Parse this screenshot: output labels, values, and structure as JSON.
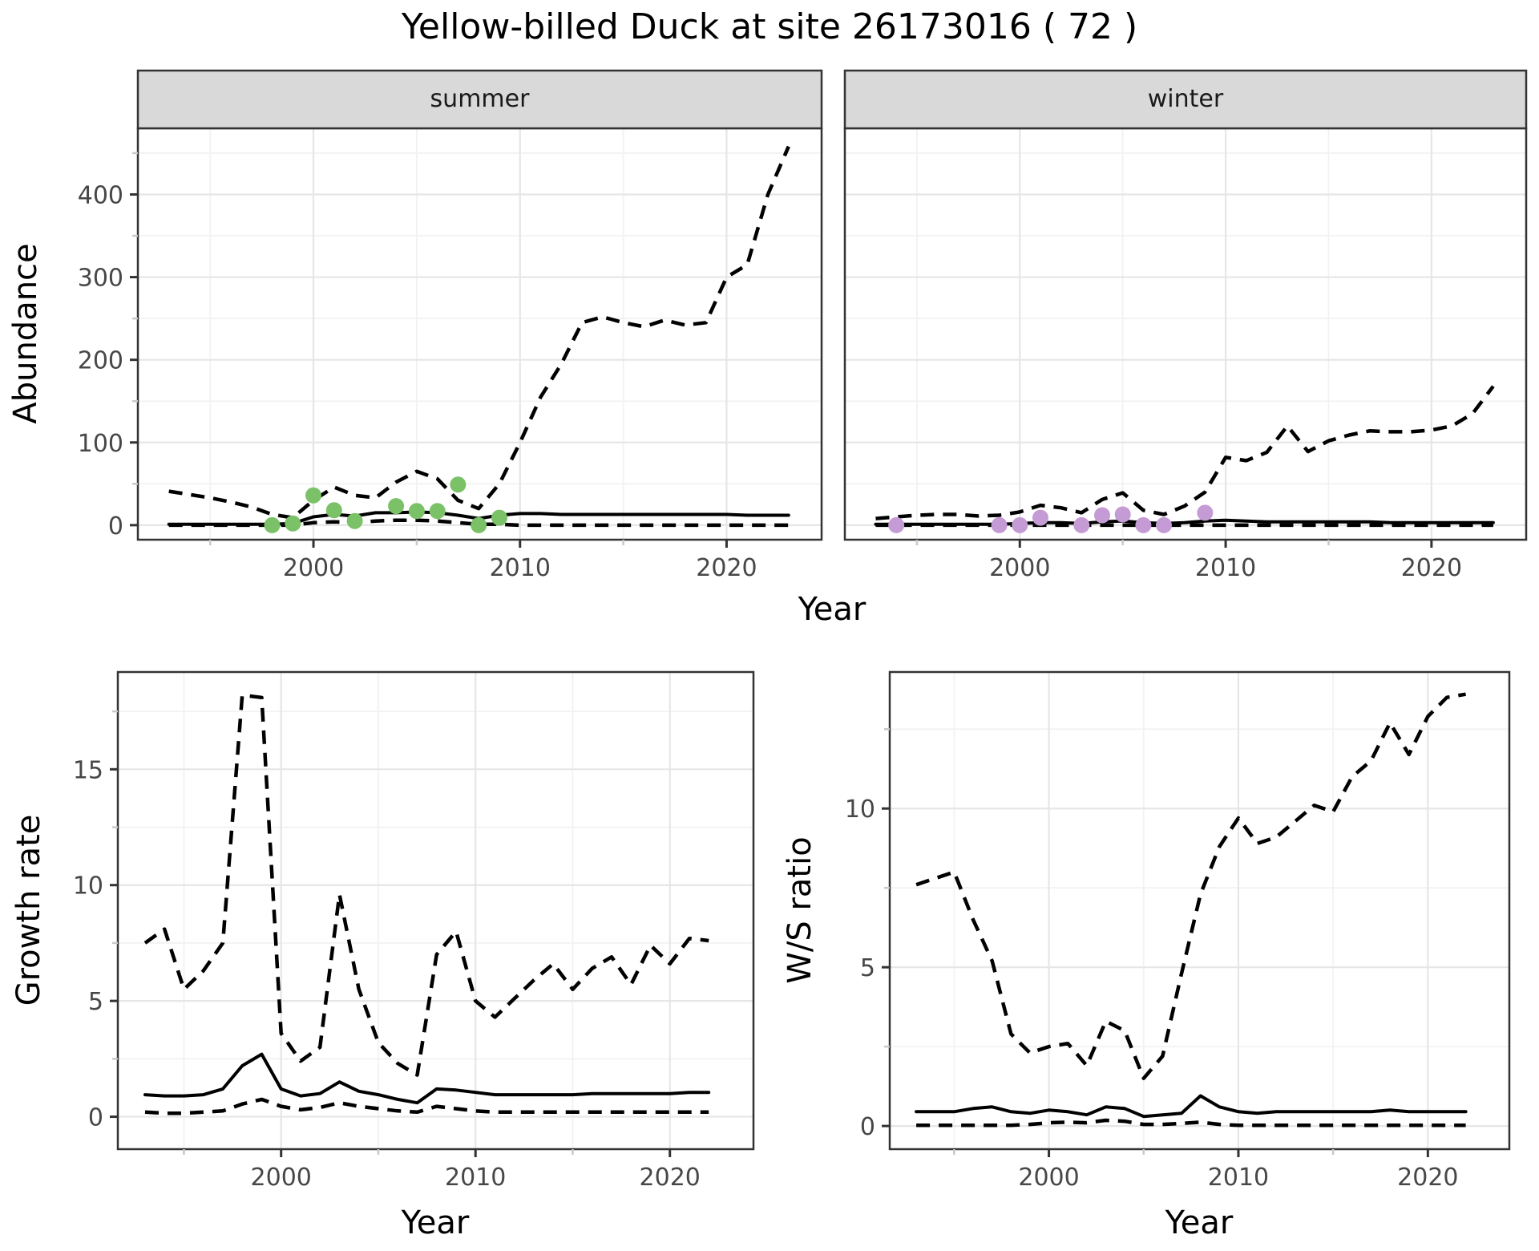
{
  "title": "Yellow-billed Duck at site 26173016 ( 72 )",
  "colors": {
    "summer_point": "#7AC167",
    "winter_point": "#C59BD5",
    "line": "#000000",
    "strip_bg": "#D9D9D9",
    "panel_border": "#333333",
    "grid_major": "#E6E6E6",
    "grid_minor": "#F2F2F2",
    "tick_label": "#474747",
    "tick_major": "#333333",
    "tick_minor": "#C8C8C8"
  },
  "chart_data": [
    {
      "type": "line",
      "facet": "summer",
      "strip_label": "summer",
      "xlabel": "Year",
      "ylabel": "Abundance",
      "xlim": [
        1991.5,
        2024.6
      ],
      "ylim": [
        -17.6,
        480
      ],
      "x_ticks": [
        2000,
        2010,
        2020
      ],
      "x_tick_labels": [
        "2000",
        "2010",
        "2020"
      ],
      "x_minor": [
        1995,
        2005,
        2015
      ],
      "y_ticks": [
        0,
        100,
        200,
        300,
        400
      ],
      "y_tick_labels": [
        "0",
        "100",
        "200",
        "300",
        "400"
      ],
      "y_minor": [
        50,
        150,
        250,
        350,
        450
      ],
      "x": [
        1993,
        1994,
        1995,
        1996,
        1997,
        1998,
        1999,
        2000,
        2001,
        2002,
        2003,
        2004,
        2005,
        2006,
        2007,
        2008,
        2009,
        2010,
        2011,
        2012,
        2013,
        2014,
        2015,
        2016,
        2017,
        2018,
        2019,
        2020,
        2021,
        2022,
        2023
      ],
      "series": [
        {
          "name": "upper-ci",
          "style": "dashed",
          "values": [
            41,
            37,
            33,
            28,
            22,
            13,
            9,
            30,
            46,
            36,
            33,
            52,
            65,
            56,
            30,
            20,
            50,
            100,
            155,
            195,
            245,
            252,
            245,
            240,
            248,
            242,
            245,
            300,
            315,
            400,
            458
          ]
        },
        {
          "name": "median",
          "style": "solid",
          "values": [
            1,
            1,
            1,
            1,
            1,
            1,
            2,
            10,
            13,
            11,
            15,
            15,
            16,
            15,
            12,
            8,
            12,
            14,
            14,
            13,
            13,
            13,
            13,
            13,
            13,
            13,
            13,
            13,
            12,
            12,
            12
          ]
        },
        {
          "name": "lower-ci",
          "style": "dashed",
          "values": [
            0,
            0,
            0,
            0,
            0,
            0,
            0,
            3,
            4,
            3,
            5,
            6,
            6,
            5,
            3,
            1,
            1,
            0,
            0,
            0,
            0,
            0,
            0,
            0,
            0,
            0,
            0,
            0,
            0,
            0,
            0
          ]
        }
      ],
      "points": {
        "name": "summer-observed",
        "color": "#7AC167",
        "data": [
          [
            1998,
            0
          ],
          [
            1999,
            2
          ],
          [
            2000,
            36
          ],
          [
            2001,
            18
          ],
          [
            2002,
            5
          ],
          [
            2004,
            23
          ],
          [
            2005,
            17
          ],
          [
            2006,
            17
          ],
          [
            2007,
            49
          ],
          [
            2008,
            0
          ],
          [
            2009,
            9
          ]
        ]
      }
    },
    {
      "type": "line",
      "facet": "winter",
      "strip_label": "winter",
      "xlabel": "Year",
      "ylabel": "Abundance",
      "xlim": [
        1991.5,
        2024.6
      ],
      "ylim": [
        -17.6,
        480
      ],
      "x_ticks": [
        2000,
        2010,
        2020
      ],
      "x_tick_labels": [
        "2000",
        "2010",
        "2020"
      ],
      "x_minor": [
        1995,
        2005,
        2015
      ],
      "y_ticks": [
        0,
        100,
        200,
        300,
        400
      ],
      "y_tick_labels": [
        "0",
        "100",
        "200",
        "300",
        "400"
      ],
      "y_minor": [
        50,
        150,
        250,
        350,
        450
      ],
      "x": [
        1993,
        1994,
        1995,
        1996,
        1997,
        1998,
        1999,
        2000,
        2001,
        2002,
        2003,
        2004,
        2005,
        2006,
        2007,
        2008,
        2009,
        2010,
        2011,
        2012,
        2013,
        2014,
        2015,
        2016,
        2017,
        2018,
        2019,
        2020,
        2021,
        2022,
        2023
      ],
      "series": [
        {
          "name": "upper-ci",
          "style": "dashed",
          "values": [
            8,
            10,
            12,
            13,
            13,
            11,
            12,
            16,
            24,
            21,
            15,
            31,
            39,
            18,
            13,
            23,
            40,
            82,
            78,
            88,
            120,
            89,
            102,
            109,
            114,
            113,
            113,
            115,
            120,
            135,
            168
          ]
        },
        {
          "name": "median",
          "style": "solid",
          "values": [
            1,
            1,
            1,
            1,
            1,
            1,
            1,
            2,
            3,
            3,
            2,
            4,
            5,
            3,
            2,
            3,
            5,
            6,
            5,
            4,
            4,
            4,
            4,
            4,
            4,
            3,
            3,
            3,
            3,
            3,
            3
          ]
        },
        {
          "name": "lower-ci",
          "style": "dashed",
          "values": [
            0,
            0,
            0,
            0,
            0,
            0,
            0,
            0,
            0,
            0,
            0,
            0,
            0,
            0,
            0,
            0,
            0,
            0,
            0,
            0,
            0,
            0,
            0,
            0,
            0,
            0,
            0,
            0,
            0,
            0,
            0
          ]
        }
      ],
      "points": {
        "name": "winter-observed",
        "color": "#C59BD5",
        "data": [
          [
            1994,
            0
          ],
          [
            1999,
            0
          ],
          [
            2000,
            0
          ],
          [
            2001,
            9
          ],
          [
            2003,
            0
          ],
          [
            2004,
            12
          ],
          [
            2005,
            13
          ],
          [
            2006,
            0
          ],
          [
            2007,
            0
          ],
          [
            2009,
            15
          ]
        ]
      }
    },
    {
      "type": "line",
      "facet": "growth",
      "strip_label": "",
      "xlabel": "Year",
      "ylabel": "Growth rate",
      "xlim": [
        1991.6,
        2024.3
      ],
      "ylim": [
        -1.4,
        19.2
      ],
      "x_ticks": [
        2000,
        2010,
        2020
      ],
      "x_tick_labels": [
        "2000",
        "2010",
        "2020"
      ],
      "x_minor": [
        1995,
        2005,
        2015
      ],
      "y_ticks": [
        0,
        5,
        10,
        15
      ],
      "y_tick_labels": [
        "0",
        "5",
        "10",
        "15"
      ],
      "y_minor": [
        2.5,
        7.5,
        12.5,
        17.5
      ],
      "x": [
        1993,
        1994,
        1995,
        1996,
        1997,
        1998,
        1999,
        2000,
        2001,
        2002,
        2003,
        2004,
        2005,
        2006,
        2007,
        2008,
        2009,
        2010,
        2011,
        2012,
        2013,
        2014,
        2015,
        2016,
        2017,
        2018,
        2019,
        2020,
        2021,
        2022
      ],
      "series": [
        {
          "name": "upper-ci",
          "style": "dashed",
          "values": [
            7.5,
            8.1,
            5.5,
            6.3,
            7.5,
            18.2,
            18.1,
            3.6,
            2.4,
            3.0,
            9.6,
            5.5,
            3.2,
            2.3,
            1.8,
            7.0,
            8.0,
            5.0,
            4.3,
            5.1,
            5.9,
            6.6,
            5.5,
            6.4,
            6.9,
            5.7,
            7.4,
            6.6,
            7.7,
            7.6
          ]
        },
        {
          "name": "median",
          "style": "solid",
          "values": [
            0.95,
            0.9,
            0.9,
            0.95,
            1.2,
            2.2,
            2.7,
            1.2,
            0.9,
            1.0,
            1.5,
            1.1,
            0.95,
            0.75,
            0.6,
            1.2,
            1.15,
            1.05,
            0.95,
            0.95,
            0.95,
            0.95,
            0.95,
            1.0,
            1.0,
            1.0,
            1.0,
            1.0,
            1.05,
            1.05
          ]
        },
        {
          "name": "lower-ci",
          "style": "dashed",
          "values": [
            0.2,
            0.15,
            0.15,
            0.2,
            0.25,
            0.55,
            0.75,
            0.45,
            0.3,
            0.4,
            0.6,
            0.45,
            0.35,
            0.25,
            0.2,
            0.45,
            0.35,
            0.25,
            0.2,
            0.2,
            0.2,
            0.2,
            0.2,
            0.2,
            0.2,
            0.2,
            0.2,
            0.2,
            0.2,
            0.2
          ]
        }
      ],
      "points": null
    },
    {
      "type": "line",
      "facet": "ws",
      "strip_label": "",
      "xlabel": "Year",
      "ylabel": "W/S ratio",
      "xlim": [
        1991.6,
        2024.3
      ],
      "ylim": [
        -0.73,
        14.3
      ],
      "x_ticks": [
        2000,
        2010,
        2020
      ],
      "x_tick_labels": [
        "2000",
        "2010",
        "2020"
      ],
      "x_minor": [
        1995,
        2005,
        2015
      ],
      "y_ticks": [
        0,
        5,
        10
      ],
      "y_tick_labels": [
        "0",
        "5",
        "10"
      ],
      "y_minor": [
        2.5,
        7.5,
        12.5
      ],
      "x": [
        1993,
        1994,
        1995,
        1996,
        1997,
        1998,
        1999,
        2000,
        2001,
        2002,
        2003,
        2004,
        2005,
        2006,
        2007,
        2008,
        2009,
        2010,
        2011,
        2012,
        2013,
        2014,
        2015,
        2016,
        2017,
        2018,
        2019,
        2020,
        2021,
        2022
      ],
      "series": [
        {
          "name": "upper-ci",
          "style": "dashed",
          "values": [
            7.6,
            7.8,
            8.0,
            6.5,
            5.2,
            2.9,
            2.3,
            2.5,
            2.6,
            1.9,
            3.3,
            3.0,
            1.5,
            2.2,
            4.8,
            7.3,
            8.8,
            9.7,
            8.9,
            9.1,
            9.6,
            10.1,
            9.9,
            11.0,
            11.5,
            12.7,
            11.7,
            12.9,
            13.5,
            13.6
          ]
        },
        {
          "name": "median",
          "style": "solid",
          "values": [
            0.45,
            0.45,
            0.45,
            0.55,
            0.6,
            0.45,
            0.4,
            0.5,
            0.45,
            0.35,
            0.6,
            0.55,
            0.3,
            0.35,
            0.4,
            0.95,
            0.6,
            0.45,
            0.4,
            0.45,
            0.45,
            0.45,
            0.45,
            0.45,
            0.45,
            0.5,
            0.45,
            0.45,
            0.45,
            0.45
          ]
        },
        {
          "name": "lower-ci",
          "style": "dashed",
          "values": [
            0.02,
            0.02,
            0.02,
            0.02,
            0.02,
            0.02,
            0.05,
            0.1,
            0.12,
            0.1,
            0.18,
            0.15,
            0.05,
            0.05,
            0.08,
            0.12,
            0.05,
            0.02,
            0.02,
            0.02,
            0.02,
            0.02,
            0.02,
            0.02,
            0.02,
            0.02,
            0.02,
            0.02,
            0.02,
            0.02
          ]
        }
      ],
      "points": null
    }
  ]
}
